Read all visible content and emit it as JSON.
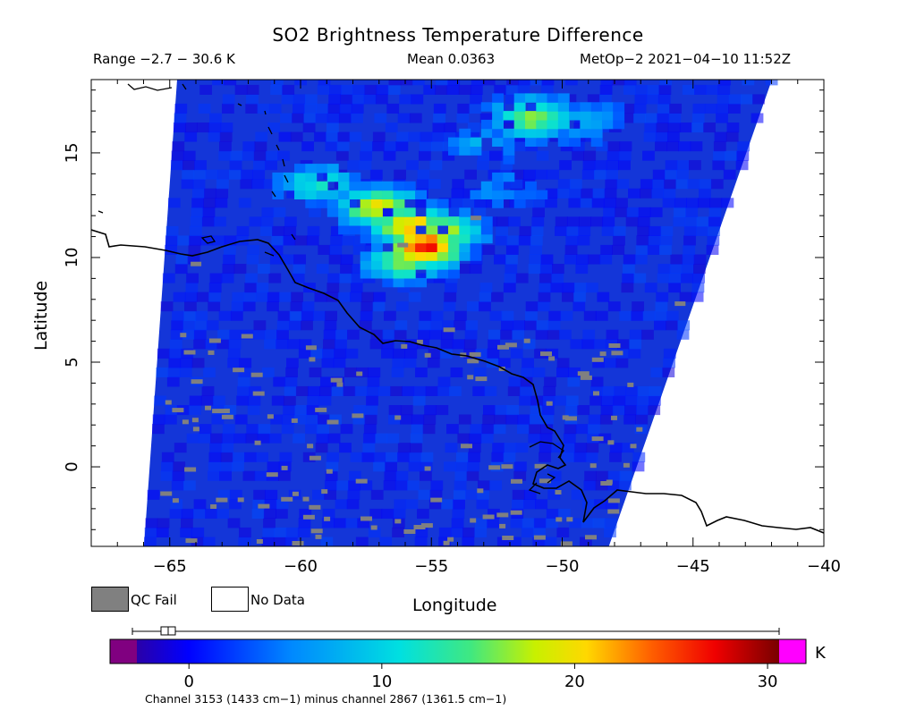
{
  "chart_data": {
    "type": "heatmap",
    "title": "SO2 Brightness Temperature Difference",
    "header_left": "Range −2.7 − 30.6 K",
    "header_center": "Mean 0.0363",
    "header_right": "MetOp−2 2021−04−10 11:52Z",
    "xlabel": "Longitude",
    "ylabel": "Latitude",
    "xlim": [
      -68,
      -40
    ],
    "ylim": [
      -3.8,
      18.5
    ],
    "x_ticks": [
      -65,
      -60,
      -55,
      -50,
      -45,
      -40
    ],
    "x_tick_labels": [
      "−65",
      "−60",
      "−55",
      "−50",
      "−45",
      "−40"
    ],
    "y_ticks": [
      0,
      5,
      10,
      15
    ],
    "y_tick_labels": [
      "0",
      "5",
      "10",
      "15"
    ],
    "swath_edges": {
      "top_lon": [
        -64.7,
        -41.9
      ],
      "bottom_lon": [
        -66.0,
        -48.3
      ]
    },
    "legend": {
      "qc_fail_label": "QC Fail",
      "no_data_label": "No Data",
      "qc_fail_color": "#808080",
      "no_data_color": "#ffffff"
    },
    "colorbar": {
      "vmin": -2.7,
      "vmax": 30.6,
      "tick_values": [
        0,
        10,
        20,
        30
      ],
      "tick_labels": [
        "0",
        "10",
        "20",
        "30"
      ],
      "unit": "K",
      "under_color": "#800080",
      "over_color": "#ff00ff",
      "footer": "Channel 3153 (1433 cm−1) minus channel 2867 (1361.5 cm−1)"
    },
    "plumes": [
      {
        "lon": -55.5,
        "lat": 10.3,
        "value": 27
      },
      {
        "lon": -56.0,
        "lat": 11.3,
        "value": 22
      },
      {
        "lon": -57.2,
        "lat": 12.2,
        "value": 20
      },
      {
        "lon": -54.8,
        "lat": 11.0,
        "value": 18
      },
      {
        "lon": -56.3,
        "lat": 9.6,
        "value": 16
      },
      {
        "lon": -59.5,
        "lat": 13.3,
        "value": 12
      },
      {
        "lon": -51.3,
        "lat": 16.5,
        "value": 17
      },
      {
        "lon": -49.5,
        "lat": 16.3,
        "value": 9
      },
      {
        "lon": -53.5,
        "lat": 15.2,
        "value": 7
      },
      {
        "lon": -52.5,
        "lat": 13.0,
        "value": 6
      }
    ]
  }
}
